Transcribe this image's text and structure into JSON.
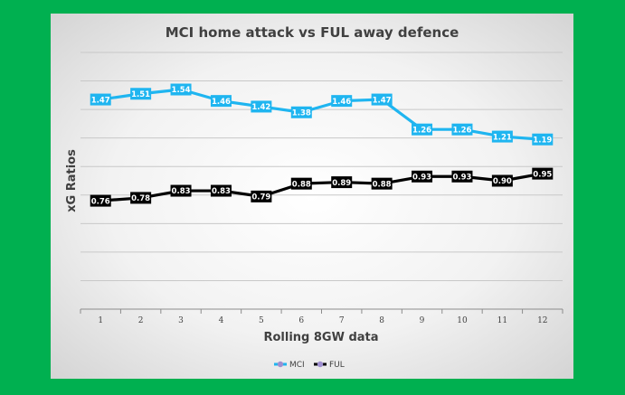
{
  "chart_data": {
    "type": "line",
    "title": "MCI home attack vs FUL away defence",
    "xlabel": "Rolling 8GW data",
    "ylabel": "xG Ratios",
    "categories": [
      "1",
      "2",
      "3",
      "4",
      "5",
      "6",
      "7",
      "8",
      "9",
      "10",
      "11",
      "12"
    ],
    "ylim": [
      0,
      1.8
    ],
    "grid": true,
    "legend": "bottom",
    "series": [
      {
        "name": "MCI",
        "color": "#1fb5f0",
        "label_bg": "#1fb5f0",
        "values": [
          1.47,
          1.51,
          1.54,
          1.46,
          1.42,
          1.38,
          1.46,
          1.47,
          1.26,
          1.26,
          1.21,
          1.19
        ],
        "labels": [
          "1.47",
          "1.51",
          "1.54",
          "1.46",
          "1.42",
          "1.38",
          "1.46",
          "1.47",
          "1.26",
          "1.26",
          "1.21",
          "1.19"
        ]
      },
      {
        "name": "FUL",
        "color": "#000000",
        "label_bg": "#000000",
        "values": [
          0.76,
          0.78,
          0.83,
          0.83,
          0.79,
          0.88,
          0.89,
          0.88,
          0.93,
          0.93,
          0.9,
          0.95
        ],
        "labels": [
          "0.76",
          "0.78",
          "0.83",
          "0.83",
          "0.79",
          "0.88",
          "0.89",
          "0.88",
          "0.93",
          "0.93",
          "0.90",
          "0.95"
        ]
      }
    ]
  }
}
